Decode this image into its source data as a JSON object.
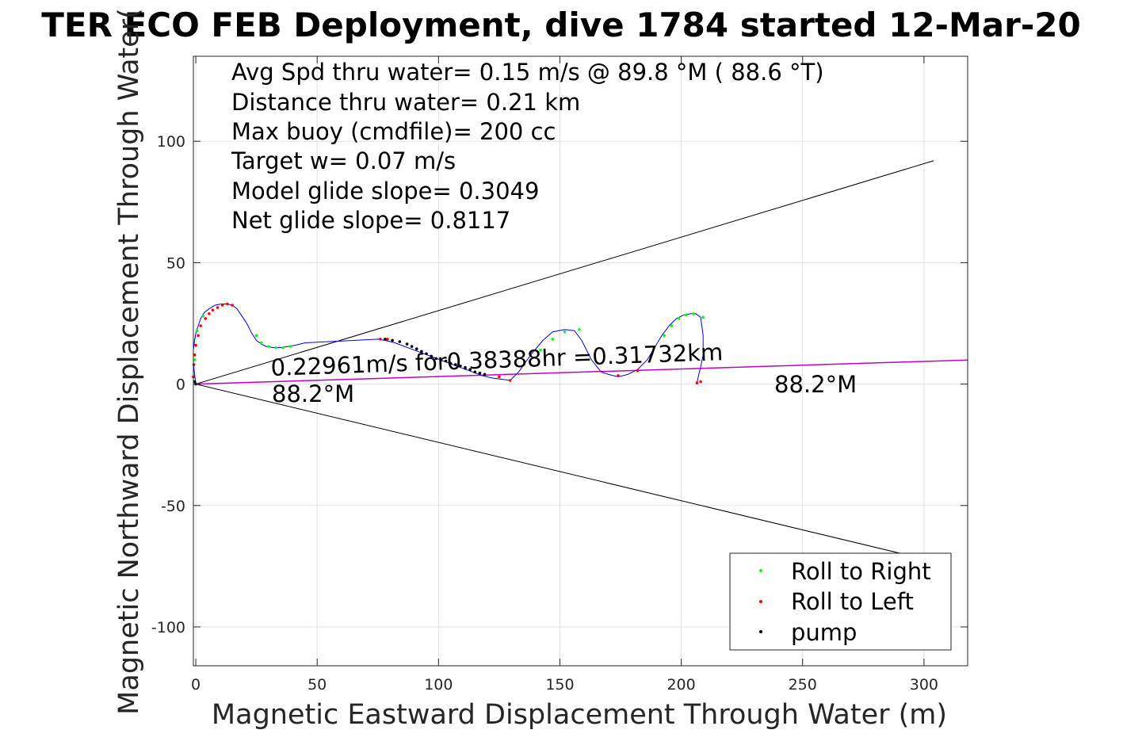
{
  "chart_data": {
    "type": "scatter",
    "title": "TER ECO FEB Deployment, dive 1784 started 12-Mar-20",
    "xlabel": "Magnetic Eastward Displacement Through Water (m)",
    "ylabel": "Magnetic Northward Displacement Through Water(",
    "xlim": [
      -1,
      318
    ],
    "ylim": [
      -116,
      135
    ],
    "xticks": [
      0,
      50,
      100,
      150,
      200,
      250,
      300
    ],
    "yticks": [
      -100,
      -50,
      0,
      50,
      100
    ],
    "xtick_labels": [
      "0",
      "50",
      "100",
      "150",
      "200",
      "250",
      "300"
    ],
    "ytick_labels": [
      "-100",
      "-50",
      "0",
      "50",
      "100"
    ],
    "grid": true,
    "legend_placement": "bottom-right",
    "info_lines": [
      "Avg Spd thru water=  0.15 m/s @  89.8 °M ( 88.6 °T)",
      "Distance thru water=  0.21 km",
      "Max buoy (cmdfile)= 200 cc",
      "Target w= 0.07 m/s",
      "Model glide slope= 0.3049",
      "Net glide slope= 0.8117"
    ],
    "annotations": {
      "speed_text": "0.22961m/s for0.38388hr =0.31732km",
      "heading_left": "88.2°M",
      "heading_right": "88.2°M"
    },
    "series": [
      {
        "name": "Roll to Right",
        "color": "#00ff00",
        "marker": "dot"
      },
      {
        "name": "Roll to Left",
        "color": "#ff0000",
        "marker": "dot"
      },
      {
        "name": "pump",
        "color": "#000000",
        "marker": "dot"
      }
    ],
    "colors": {
      "track": "#0000ff",
      "heading_line": "#c000c0",
      "cone_lines": "#000000",
      "grid": "#e0e0e0"
    },
    "track": {
      "x": [
        0,
        -0.5,
        -1,
        -1,
        -0.5,
        0,
        1,
        2,
        3.5,
        5.5,
        8,
        10.5,
        13,
        15,
        17,
        19,
        21,
        23,
        25,
        27,
        29,
        32,
        35,
        38,
        41,
        45,
        55,
        65,
        75,
        78,
        82,
        86,
        90,
        94,
        98,
        102,
        106,
        110,
        114,
        118,
        122,
        126,
        129.5,
        133,
        138,
        143,
        147,
        152,
        156,
        159,
        163,
        167,
        170,
        174,
        178,
        182,
        186,
        189,
        192,
        195,
        198,
        201,
        204,
        206,
        208,
        209,
        209,
        208,
        207,
        206.5,
        206.5
      ],
      "y": [
        0,
        4,
        9,
        14,
        18,
        21,
        24,
        27,
        29.5,
        31,
        32.5,
        33,
        33,
        32.5,
        31,
        28,
        25,
        21,
        18,
        16.5,
        15.5,
        15,
        15,
        15.5,
        16,
        17,
        17.5,
        18,
        18.5,
        18,
        17,
        15.5,
        14,
        12.5,
        11,
        9.5,
        8,
        6.5,
        5,
        3.5,
        2.5,
        2,
        1.5,
        5,
        12,
        18,
        21.5,
        22.5,
        22,
        18,
        10,
        5,
        4,
        3,
        4,
        6,
        10,
        15,
        20,
        24,
        27,
        28.5,
        29,
        29,
        27.5,
        20,
        12,
        7,
        3,
        0.5,
        0
      ],
      "roll_right": [
        [
          25,
          20
        ],
        [
          27,
          17
        ],
        [
          30,
          15.5
        ],
        [
          33,
          15
        ],
        [
          36,
          15
        ],
        [
          39,
          15.5
        ],
        [
          142,
          14
        ],
        [
          147,
          18.5
        ],
        [
          152,
          21.5
        ],
        [
          158,
          22.5
        ],
        [
          193,
          20
        ],
        [
          196,
          24
        ],
        [
          199,
          27
        ],
        [
          202,
          28.5
        ],
        [
          205,
          29
        ],
        [
          209,
          27.5
        ],
        [
          -0.5,
          10
        ],
        [
          0.5,
          22
        ],
        [
          3,
          28
        ]
      ],
      "roll_left": [
        [
          -1,
          3
        ],
        [
          -0.8,
          8
        ],
        [
          -0.5,
          12
        ],
        [
          0,
          16
        ],
        [
          1,
          20
        ],
        [
          2,
          24
        ],
        [
          4,
          27
        ],
        [
          5.5,
          29
        ],
        [
          7,
          30.5
        ],
        [
          9,
          31.5
        ],
        [
          11,
          32.5
        ],
        [
          13,
          33
        ],
        [
          15,
          32.5
        ],
        [
          76,
          18.5
        ],
        [
          79,
          18.5
        ],
        [
          125,
          3
        ],
        [
          129.5,
          1.5
        ],
        [
          174,
          3.5
        ],
        [
          182,
          5.5
        ],
        [
          208,
          1
        ],
        [
          206.5,
          0.5
        ]
      ],
      "pump": [
        [
          78,
          18.5
        ],
        [
          81,
          18
        ],
        [
          84,
          17.5
        ],
        [
          87,
          16.5
        ],
        [
          89,
          15.5
        ],
        [
          91,
          14.5
        ],
        [
          93,
          13.5
        ],
        [
          95,
          12.5
        ],
        [
          97,
          11.5
        ],
        [
          99,
          10.5
        ],
        [
          101,
          10
        ],
        [
          103,
          9.5
        ],
        [
          105,
          8.5
        ],
        [
          107,
          8
        ],
        [
          109,
          7.5
        ],
        [
          111,
          6.5
        ],
        [
          113,
          6
        ],
        [
          115,
          5
        ],
        [
          117,
          4.5
        ],
        [
          119,
          4
        ],
        [
          0,
          0
        ],
        [
          -0.5,
          1
        ]
      ]
    },
    "cone_upper": {
      "x": [
        0,
        304
      ],
      "y": [
        0,
        92
      ]
    },
    "cone_lower": {
      "x": [
        0,
        304
      ],
      "y": [
        0,
        -73
      ]
    },
    "heading_line": {
      "x": [
        0,
        318
      ],
      "y": [
        0,
        9.9
      ]
    },
    "speed_text_angle_deg": -2
  }
}
